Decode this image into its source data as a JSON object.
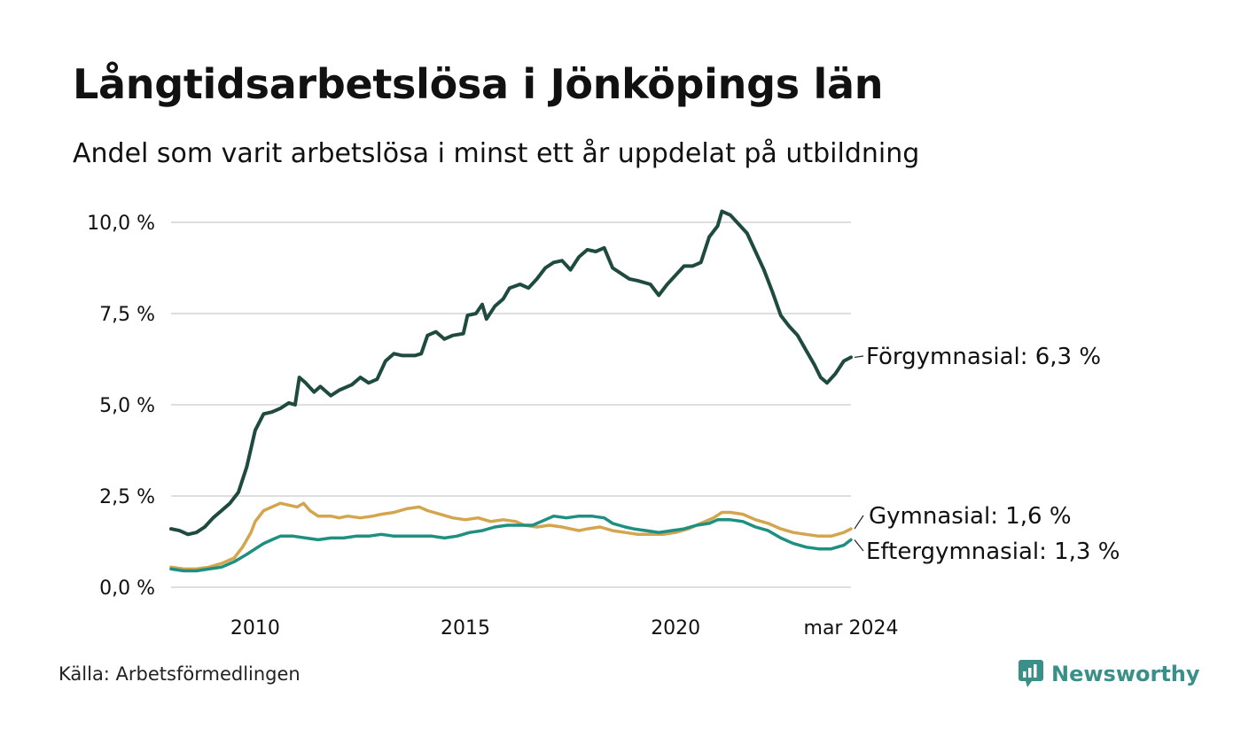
{
  "chart_data": {
    "type": "line",
    "title": "Långtidsarbetslösa i Jönköpings län",
    "subtitle": "Andel som varit arbetslösa i minst ett år uppdelat på utbildning",
    "xlabel": "",
    "ylabel": "",
    "xlim": [
      2008.0,
      2024.17
    ],
    "ylim": [
      0,
      10.5
    ],
    "y_ticks": [
      0,
      2.5,
      5,
      7.5,
      10
    ],
    "y_tick_labels": [
      "0,0 %",
      "2,5 %",
      "5,0 %",
      "7,5 %",
      "10,0 %"
    ],
    "x_ticks": [
      2010,
      2015,
      2020,
      2024.17
    ],
    "x_tick_labels": [
      "2010",
      "2015",
      "2020",
      "mar 2024"
    ],
    "grid": true,
    "series": [
      {
        "name": "Förgymnasial",
        "color": "#1f4a40",
        "end_label": "Förgymnasial: 6,3 %",
        "points": [
          [
            2008.0,
            1.6
          ],
          [
            2008.2,
            1.55
          ],
          [
            2008.4,
            1.45
          ],
          [
            2008.6,
            1.5
          ],
          [
            2008.8,
            1.65
          ],
          [
            2009.0,
            1.9
          ],
          [
            2009.2,
            2.1
          ],
          [
            2009.4,
            2.3
          ],
          [
            2009.6,
            2.6
          ],
          [
            2009.8,
            3.3
          ],
          [
            2010.0,
            4.3
          ],
          [
            2010.2,
            4.75
          ],
          [
            2010.4,
            4.8
          ],
          [
            2010.6,
            4.9
          ],
          [
            2010.8,
            5.05
          ],
          [
            2010.95,
            5.0
          ],
          [
            2011.05,
            5.75
          ],
          [
            2011.2,
            5.6
          ],
          [
            2011.4,
            5.35
          ],
          [
            2011.55,
            5.5
          ],
          [
            2011.8,
            5.25
          ],
          [
            2012.0,
            5.4
          ],
          [
            2012.3,
            5.55
          ],
          [
            2012.5,
            5.75
          ],
          [
            2012.7,
            5.6
          ],
          [
            2012.9,
            5.7
          ],
          [
            2013.1,
            6.2
          ],
          [
            2013.3,
            6.4
          ],
          [
            2013.5,
            6.35
          ],
          [
            2013.8,
            6.35
          ],
          [
            2013.95,
            6.4
          ],
          [
            2014.1,
            6.9
          ],
          [
            2014.3,
            7.0
          ],
          [
            2014.5,
            6.8
          ],
          [
            2014.7,
            6.9
          ],
          [
            2014.95,
            6.95
          ],
          [
            2015.05,
            7.45
          ],
          [
            2015.25,
            7.5
          ],
          [
            2015.4,
            7.75
          ],
          [
            2015.5,
            7.35
          ],
          [
            2015.7,
            7.7
          ],
          [
            2015.9,
            7.9
          ],
          [
            2016.05,
            8.2
          ],
          [
            2016.3,
            8.3
          ],
          [
            2016.5,
            8.2
          ],
          [
            2016.7,
            8.45
          ],
          [
            2016.9,
            8.75
          ],
          [
            2017.1,
            8.9
          ],
          [
            2017.3,
            8.95
          ],
          [
            2017.5,
            8.7
          ],
          [
            2017.7,
            9.05
          ],
          [
            2017.9,
            9.25
          ],
          [
            2018.1,
            9.2
          ],
          [
            2018.3,
            9.3
          ],
          [
            2018.5,
            8.75
          ],
          [
            2018.7,
            8.6
          ],
          [
            2018.9,
            8.45
          ],
          [
            2019.1,
            8.4
          ],
          [
            2019.4,
            8.3
          ],
          [
            2019.6,
            8.0
          ],
          [
            2019.8,
            8.3
          ],
          [
            2020.0,
            8.55
          ],
          [
            2020.2,
            8.8
          ],
          [
            2020.4,
            8.8
          ],
          [
            2020.6,
            8.9
          ],
          [
            2020.8,
            9.6
          ],
          [
            2021.0,
            9.9
          ],
          [
            2021.1,
            10.3
          ],
          [
            2021.3,
            10.2
          ],
          [
            2021.5,
            9.95
          ],
          [
            2021.7,
            9.7
          ],
          [
            2021.9,
            9.2
          ],
          [
            2022.1,
            8.7
          ],
          [
            2022.3,
            8.1
          ],
          [
            2022.5,
            7.45
          ],
          [
            2022.7,
            7.15
          ],
          [
            2022.9,
            6.9
          ],
          [
            2023.1,
            6.5
          ],
          [
            2023.3,
            6.1
          ],
          [
            2023.45,
            5.75
          ],
          [
            2023.6,
            5.6
          ],
          [
            2023.8,
            5.85
          ],
          [
            2024.0,
            6.2
          ],
          [
            2024.17,
            6.3
          ]
        ]
      },
      {
        "name": "Gymnasial",
        "color": "#d4a54f",
        "end_label": "Gymnasial: 1,6 %",
        "points": [
          [
            2008.0,
            0.55
          ],
          [
            2008.3,
            0.5
          ],
          [
            2008.6,
            0.5
          ],
          [
            2008.9,
            0.55
          ],
          [
            2009.2,
            0.65
          ],
          [
            2009.5,
            0.8
          ],
          [
            2009.7,
            1.1
          ],
          [
            2009.9,
            1.5
          ],
          [
            2010.0,
            1.8
          ],
          [
            2010.2,
            2.1
          ],
          [
            2010.4,
            2.2
          ],
          [
            2010.6,
            2.3
          ],
          [
            2010.8,
            2.25
          ],
          [
            2011.0,
            2.2
          ],
          [
            2011.15,
            2.3
          ],
          [
            2011.3,
            2.1
          ],
          [
            2011.5,
            1.95
          ],
          [
            2011.8,
            1.95
          ],
          [
            2012.0,
            1.9
          ],
          [
            2012.2,
            1.95
          ],
          [
            2012.5,
            1.9
          ],
          [
            2012.8,
            1.95
          ],
          [
            2013.0,
            2.0
          ],
          [
            2013.3,
            2.05
          ],
          [
            2013.6,
            2.15
          ],
          [
            2013.9,
            2.2
          ],
          [
            2014.1,
            2.1
          ],
          [
            2014.4,
            2.0
          ],
          [
            2014.7,
            1.9
          ],
          [
            2015.0,
            1.85
          ],
          [
            2015.3,
            1.9
          ],
          [
            2015.6,
            1.8
          ],
          [
            2015.9,
            1.85
          ],
          [
            2016.2,
            1.8
          ],
          [
            2016.4,
            1.7
          ],
          [
            2016.7,
            1.65
          ],
          [
            2017.0,
            1.7
          ],
          [
            2017.3,
            1.65
          ],
          [
            2017.5,
            1.6
          ],
          [
            2017.7,
            1.55
          ],
          [
            2017.9,
            1.6
          ],
          [
            2018.2,
            1.65
          ],
          [
            2018.5,
            1.55
          ],
          [
            2018.8,
            1.5
          ],
          [
            2019.1,
            1.45
          ],
          [
            2019.4,
            1.45
          ],
          [
            2019.7,
            1.45
          ],
          [
            2020.0,
            1.5
          ],
          [
            2020.3,
            1.6
          ],
          [
            2020.6,
            1.75
          ],
          [
            2020.9,
            1.9
          ],
          [
            2021.1,
            2.05
          ],
          [
            2021.3,
            2.05
          ],
          [
            2021.6,
            2.0
          ],
          [
            2021.9,
            1.85
          ],
          [
            2022.2,
            1.75
          ],
          [
            2022.5,
            1.6
          ],
          [
            2022.8,
            1.5
          ],
          [
            2023.1,
            1.45
          ],
          [
            2023.4,
            1.4
          ],
          [
            2023.7,
            1.4
          ],
          [
            2024.0,
            1.5
          ],
          [
            2024.17,
            1.6
          ]
        ]
      },
      {
        "name": "Eftergymnasial",
        "color": "#1e8f80",
        "end_label": "Eftergymnasial: 1,3 %",
        "points": [
          [
            2008.0,
            0.5
          ],
          [
            2008.3,
            0.45
          ],
          [
            2008.6,
            0.45
          ],
          [
            2008.9,
            0.5
          ],
          [
            2009.2,
            0.55
          ],
          [
            2009.5,
            0.7
          ],
          [
            2009.8,
            0.9
          ],
          [
            2010.0,
            1.05
          ],
          [
            2010.2,
            1.2
          ],
          [
            2010.4,
            1.3
          ],
          [
            2010.6,
            1.4
          ],
          [
            2010.9,
            1.4
          ],
          [
            2011.2,
            1.35
          ],
          [
            2011.5,
            1.3
          ],
          [
            2011.8,
            1.35
          ],
          [
            2012.1,
            1.35
          ],
          [
            2012.4,
            1.4
          ],
          [
            2012.7,
            1.4
          ],
          [
            2013.0,
            1.45
          ],
          [
            2013.3,
            1.4
          ],
          [
            2013.6,
            1.4
          ],
          [
            2013.9,
            1.4
          ],
          [
            2014.2,
            1.4
          ],
          [
            2014.5,
            1.35
          ],
          [
            2014.8,
            1.4
          ],
          [
            2015.1,
            1.5
          ],
          [
            2015.4,
            1.55
          ],
          [
            2015.7,
            1.65
          ],
          [
            2016.0,
            1.7
          ],
          [
            2016.3,
            1.7
          ],
          [
            2016.6,
            1.7
          ],
          [
            2016.9,
            1.85
          ],
          [
            2017.1,
            1.95
          ],
          [
            2017.4,
            1.9
          ],
          [
            2017.7,
            1.95
          ],
          [
            2018.0,
            1.95
          ],
          [
            2018.3,
            1.9
          ],
          [
            2018.5,
            1.75
          ],
          [
            2018.8,
            1.65
          ],
          [
            2019.0,
            1.6
          ],
          [
            2019.3,
            1.55
          ],
          [
            2019.6,
            1.5
          ],
          [
            2019.9,
            1.55
          ],
          [
            2020.2,
            1.6
          ],
          [
            2020.5,
            1.7
          ],
          [
            2020.8,
            1.75
          ],
          [
            2021.0,
            1.85
          ],
          [
            2021.3,
            1.85
          ],
          [
            2021.6,
            1.8
          ],
          [
            2021.9,
            1.65
          ],
          [
            2022.2,
            1.55
          ],
          [
            2022.5,
            1.35
          ],
          [
            2022.8,
            1.2
          ],
          [
            2023.1,
            1.1
          ],
          [
            2023.4,
            1.05
          ],
          [
            2023.7,
            1.05
          ],
          [
            2024.0,
            1.15
          ],
          [
            2024.17,
            1.3
          ]
        ]
      }
    ]
  },
  "source": "Källa: Arbetsförmedlingen",
  "brand": "Newsworthy"
}
